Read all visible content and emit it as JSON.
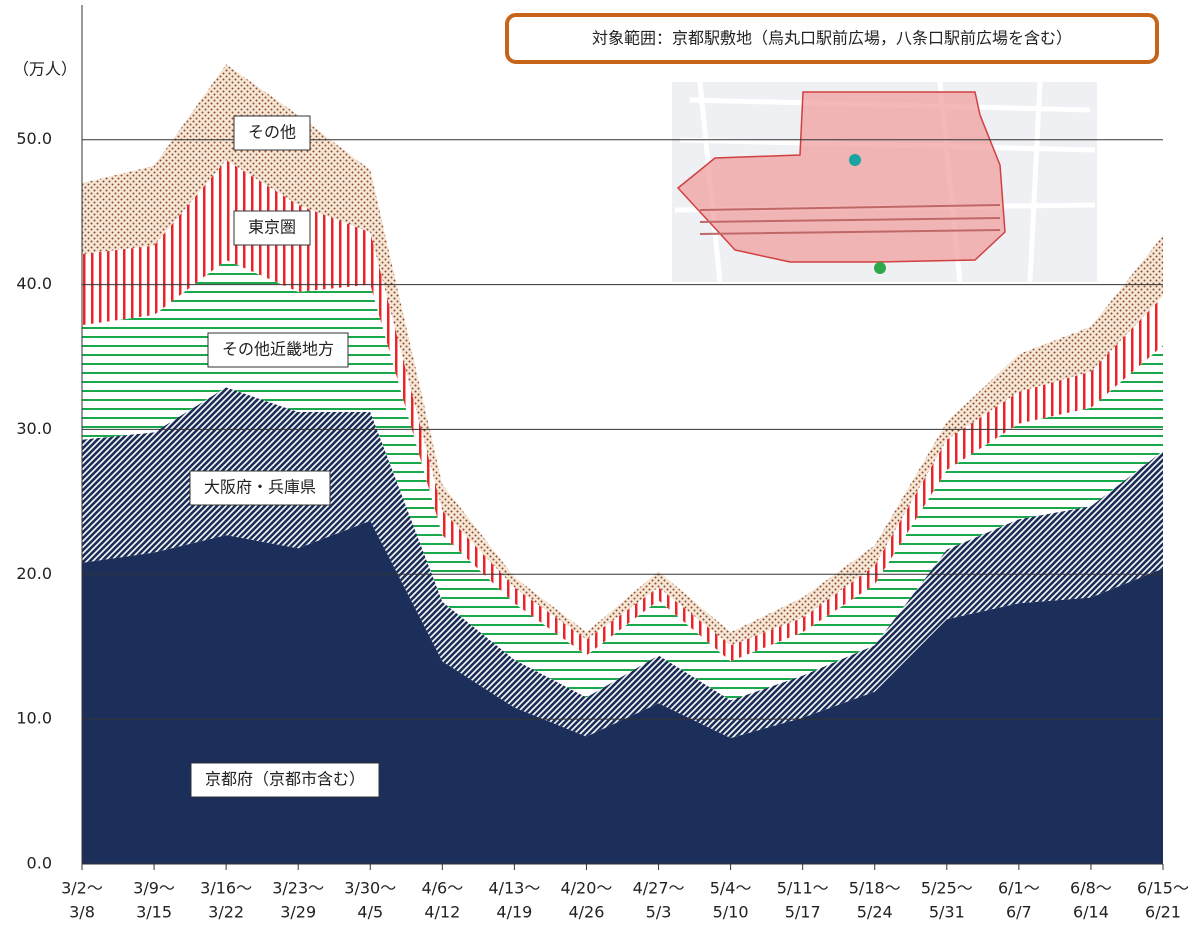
{
  "chart_data": {
    "type": "stacked-area",
    "y_unit_label": "（万人）",
    "annotation": "対象範囲：京都駅敷地（烏丸口駅前広場，八条口駅前広場を含む）",
    "categories": [
      [
        "3/2〜",
        "3/8"
      ],
      [
        "3/9〜",
        "3/15"
      ],
      [
        "3/16〜",
        "3/22"
      ],
      [
        "3/23〜",
        "3/29"
      ],
      [
        "3/30〜",
        "4/5"
      ],
      [
        "4/6〜",
        "4/12"
      ],
      [
        "4/13〜",
        "4/19"
      ],
      [
        "4/20〜",
        "4/26"
      ],
      [
        "4/27〜",
        "5/3"
      ],
      [
        "5/4〜",
        "5/10"
      ],
      [
        "5/11〜",
        "5/17"
      ],
      [
        "5/18〜",
        "5/24"
      ],
      [
        "5/25〜",
        "5/31"
      ],
      [
        "6/1〜",
        "6/7"
      ],
      [
        "6/8〜",
        "6/14"
      ],
      [
        "6/15〜",
        "6/21"
      ]
    ],
    "series": [
      {
        "name": "京都府（京都市含む）",
        "color": "#1c2f5a",
        "fill": "solid",
        "values": [
          20.8,
          21.5,
          22.7,
          21.8,
          23.7,
          14.0,
          10.8,
          8.8,
          11.1,
          8.7,
          10.1,
          11.9,
          16.9,
          18.0,
          18.4,
          20.4
        ]
      },
      {
        "name": "大阪府・兵庫県",
        "color": "#1c2f5a",
        "fill": "diagonal",
        "values": [
          8.5,
          8.3,
          10.2,
          9.4,
          7.5,
          4.1,
          3.3,
          2.7,
          3.3,
          2.6,
          2.9,
          3.2,
          4.8,
          5.8,
          6.3,
          8.1
        ]
      },
      {
        "name": "その他近畿地方",
        "color": "#19a84b",
        "fill": "hlines",
        "values": [
          7.9,
          8.1,
          8.8,
          8.3,
          8.8,
          4.6,
          3.9,
          2.9,
          3.8,
          2.7,
          3.0,
          4.2,
          5.5,
          6.6,
          6.8,
          7.3
        ]
      },
      {
        "name": "東京圏",
        "color": "#e8262a",
        "fill": "vlines",
        "values": [
          4.9,
          4.8,
          6.9,
          6.0,
          3.6,
          1.7,
          1.1,
          1.1,
          0.9,
          1.1,
          1.0,
          1.3,
          2.1,
          2.2,
          2.5,
          3.4
        ]
      },
      {
        "name": "その他",
        "color": "#8b4a2b",
        "fill": "dots",
        "values": [
          4.9,
          5.5,
          6.6,
          6.2,
          4.3,
          1.8,
          0.7,
          0.5,
          1.1,
          0.9,
          1.4,
          1.4,
          1.2,
          2.6,
          3.1,
          4.2
        ]
      }
    ],
    "ylim": [
      0,
      59.3
    ],
    "yticks": [
      {
        "value": 0,
        "label": "0.0"
      },
      {
        "value": 10,
        "label": "10.0"
      },
      {
        "value": 20,
        "label": "20.0"
      },
      {
        "value": 30,
        "label": "30.0"
      },
      {
        "value": 40,
        "label": "40.0"
      },
      {
        "value": 50,
        "label": "50.0"
      }
    ],
    "grid": true
  }
}
